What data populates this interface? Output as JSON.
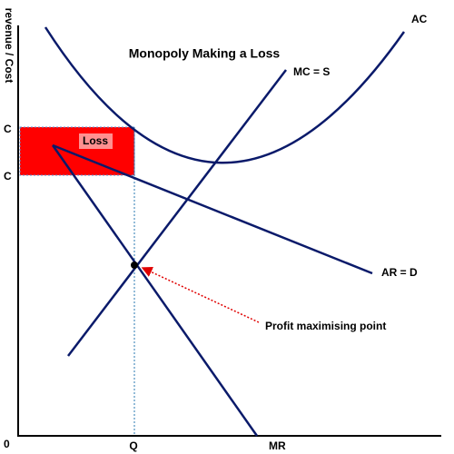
{
  "title": "Monopoly Making a Loss",
  "y_axis_label": "revenue / Cost",
  "curves": {
    "ac": "AC",
    "mc": "MC = S",
    "ar": "AR = D",
    "mr": "MR"
  },
  "area_label": "Loss",
  "annotation": "Profit maximising point",
  "y_labels": {
    "price": "C",
    "cost": "C",
    "origin": "0"
  },
  "x_labels": {
    "quantity": "Q"
  }
}
